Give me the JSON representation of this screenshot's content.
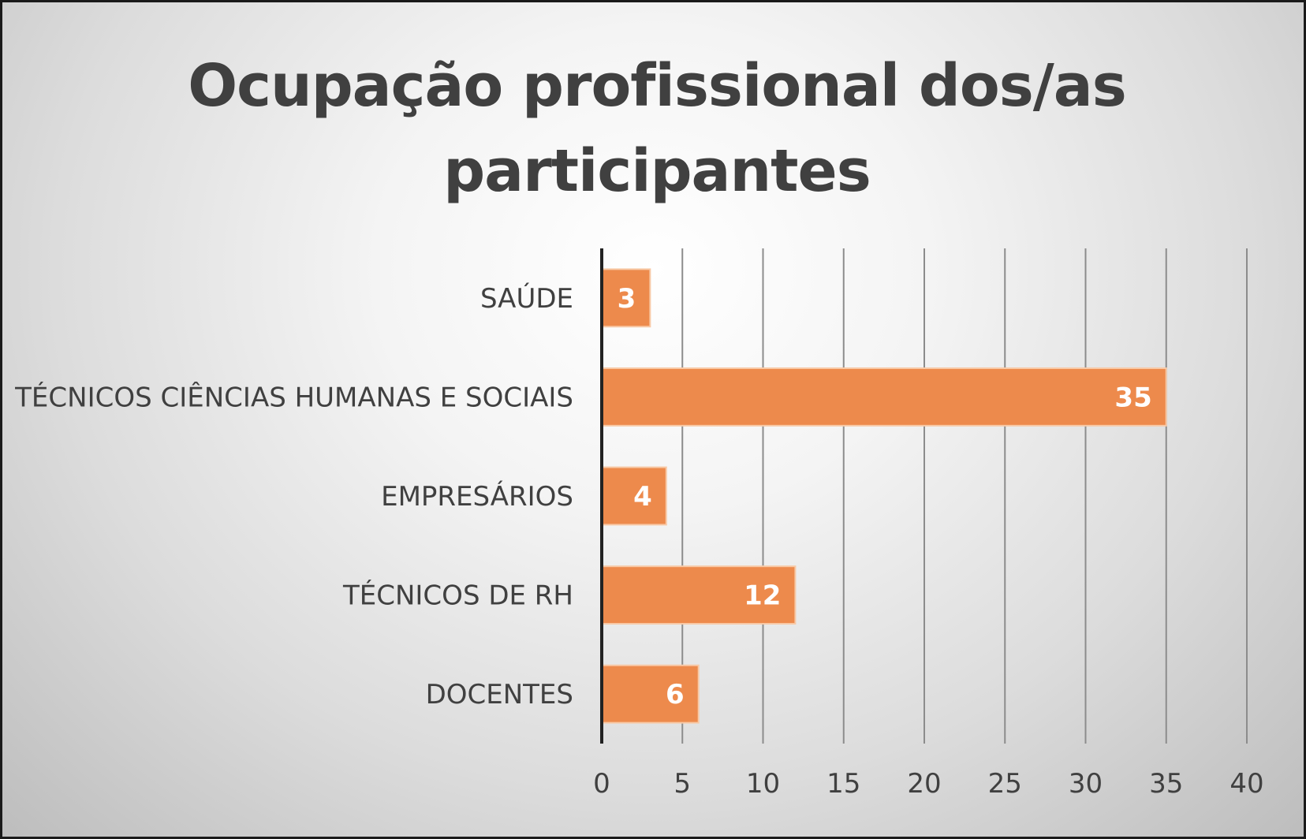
{
  "chart_data": {
    "type": "bar",
    "orientation": "horizontal",
    "title": "Ocupação profissional dos/as participantes",
    "categories": [
      "SAÚDE",
      "TÉCNICOS CIÊNCIAS HUMANAS E SOCIAIS",
      "EMPRESÁRIOS",
      "TÉCNICOS DE RH",
      "DOCENTES"
    ],
    "values": [
      3,
      35,
      4,
      12,
      6
    ],
    "xlim": [
      0,
      40
    ],
    "xticks": [
      0,
      5,
      10,
      15,
      20,
      25,
      30,
      35,
      40
    ],
    "grid": "vertical",
    "legend": "none",
    "data_labels": "inside-end",
    "colors": {
      "bar": "#ED8A4C",
      "bar_edge": "#F8C9A6",
      "grid": "#8C8C8C",
      "axis": "#222222",
      "text": "#404040",
      "data_label": "#FFFFFF"
    }
  }
}
